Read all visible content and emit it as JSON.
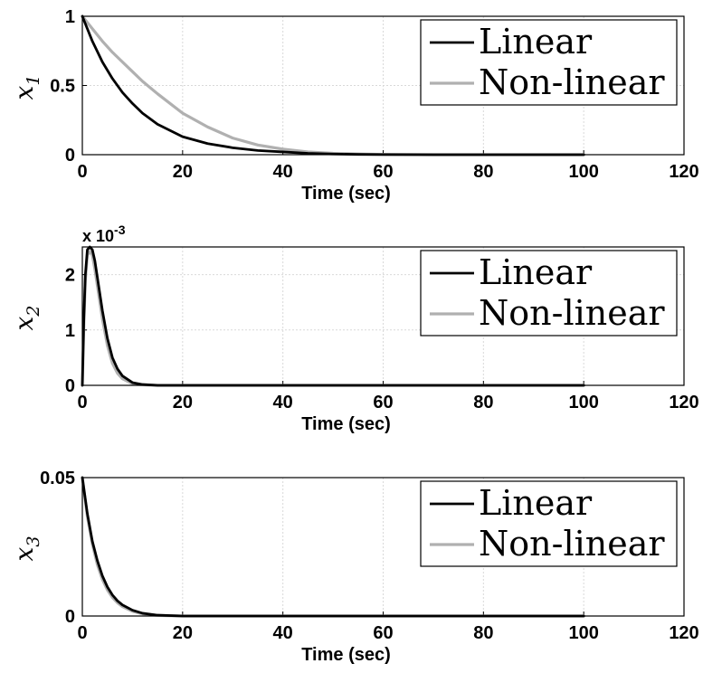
{
  "chart_data": [
    {
      "type": "line",
      "ylabel": "x",
      "ylabel_sub": "1",
      "xlabel": "Time (sec)",
      "xlim": [
        0,
        120
      ],
      "ylim": [
        0,
        1
      ],
      "xticks": [
        "0",
        "20",
        "40",
        "60",
        "80",
        "100",
        "120"
      ],
      "yticks": [
        "0",
        "0.5",
        "1"
      ],
      "multiplier": "",
      "multiplier_exp": "",
      "grid": true,
      "legend_position": "top-right",
      "series": [
        {
          "name": "Linear",
          "color": "#000000",
          "x": [
            0,
            2,
            4,
            6,
            8,
            10,
            12,
            15,
            20,
            25,
            30,
            35,
            40,
            45,
            50,
            55,
            60,
            70,
            80,
            100
          ],
          "y": [
            1.0,
            0.82,
            0.67,
            0.55,
            0.45,
            0.37,
            0.3,
            0.22,
            0.13,
            0.08,
            0.05,
            0.03,
            0.02,
            0.01,
            0.005,
            0.002,
            0.001,
            0.0,
            0.0,
            0.0
          ]
        },
        {
          "name": "Non-linear",
          "color": "#b0b0b0",
          "x": [
            0,
            2,
            4,
            6,
            8,
            10,
            12,
            15,
            20,
            25,
            30,
            35,
            40,
            45,
            50,
            55,
            60,
            70,
            80,
            100
          ],
          "y": [
            1.0,
            0.91,
            0.82,
            0.74,
            0.67,
            0.6,
            0.53,
            0.44,
            0.3,
            0.2,
            0.12,
            0.07,
            0.04,
            0.02,
            0.01,
            0.005,
            0.002,
            0.0,
            0.0,
            0.0
          ]
        }
      ]
    },
    {
      "type": "line",
      "ylabel": "x",
      "ylabel_sub": "2",
      "xlabel": "Time (sec)",
      "xlim": [
        0,
        120
      ],
      "ylim": [
        0,
        2.5
      ],
      "xticks": [
        "0",
        "20",
        "40",
        "60",
        "80",
        "100",
        "120"
      ],
      "yticks": [
        "0",
        "1",
        "2"
      ],
      "multiplier": "x 10",
      "multiplier_exp": "-3",
      "grid": true,
      "legend_position": "top-right",
      "series": [
        {
          "name": "Linear",
          "color": "#000000",
          "x": [
            0,
            0.3,
            0.6,
            1.0,
            1.5,
            2.0,
            2.5,
            3.0,
            4.0,
            5.0,
            6.0,
            7.0,
            8.0,
            10.0,
            12.0,
            15.0,
            20.0,
            100.0
          ],
          "y": [
            0.0,
            1.2,
            2.0,
            2.45,
            2.5,
            2.45,
            2.25,
            1.95,
            1.35,
            0.85,
            0.5,
            0.3,
            0.17,
            0.05,
            0.015,
            0.0,
            0.0,
            0.0
          ]
        },
        {
          "name": "Non-linear",
          "color": "#b0b0b0",
          "x": [
            0,
            0.3,
            0.6,
            1.0,
            1.5,
            2.0,
            2.5,
            3.0,
            4.0,
            5.0,
            6.0,
            7.0,
            8.0,
            10.0,
            12.0,
            15.0,
            20.0,
            100.0
          ],
          "y": [
            0.0,
            1.1,
            1.9,
            2.35,
            2.42,
            2.35,
            2.1,
            1.8,
            1.2,
            0.72,
            0.4,
            0.22,
            0.12,
            0.03,
            0.01,
            0.0,
            0.0,
            0.0
          ]
        }
      ]
    },
    {
      "type": "line",
      "ylabel": "x",
      "ylabel_sub": "3",
      "xlabel": "Time (sec)",
      "xlim": [
        0,
        120
      ],
      "ylim": [
        0,
        0.05
      ],
      "xticks": [
        "0",
        "20",
        "40",
        "60",
        "80",
        "100",
        "120"
      ],
      "yticks": [
        "0",
        "0.05"
      ],
      "multiplier": "",
      "multiplier_exp": "",
      "grid": true,
      "legend_position": "top-right",
      "series": [
        {
          "name": "Linear",
          "color": "#000000",
          "x": [
            0,
            1,
            2,
            3,
            4,
            5,
            6,
            7,
            8,
            10,
            12,
            15,
            20,
            100
          ],
          "y": [
            0.05,
            0.037,
            0.027,
            0.02,
            0.0145,
            0.0105,
            0.0076,
            0.0055,
            0.004,
            0.0021,
            0.001,
            0.0003,
            0.0,
            0.0
          ]
        },
        {
          "name": "Non-linear",
          "color": "#b0b0b0",
          "x": [
            0,
            1,
            2,
            3,
            4,
            5,
            6,
            7,
            8,
            10,
            12,
            15,
            20,
            100
          ],
          "y": [
            0.05,
            0.036,
            0.026,
            0.0185,
            0.0132,
            0.0094,
            0.0067,
            0.0048,
            0.0034,
            0.0017,
            0.0008,
            0.0002,
            0.0,
            0.0
          ]
        }
      ]
    }
  ]
}
